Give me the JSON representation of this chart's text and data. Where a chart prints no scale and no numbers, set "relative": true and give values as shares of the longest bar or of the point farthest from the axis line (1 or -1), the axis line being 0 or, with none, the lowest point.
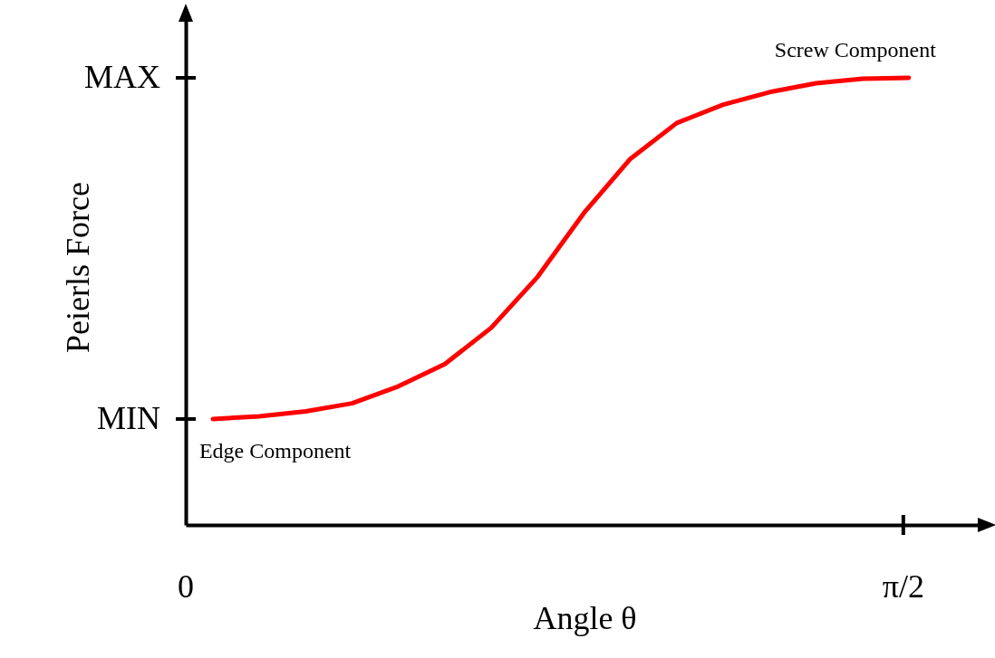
{
  "chart_data": {
    "type": "line",
    "xlabel": "Angle θ",
    "ylabel": "Peierls Force",
    "categories": [
      null,
      null,
      null,
      null,
      null,
      null,
      null,
      null,
      null,
      null,
      null,
      null,
      null,
      null,
      null,
      null
    ],
    "relative": true,
    "series": [
      {
        "color": "#ff0000",
        "values": [
          0.237,
          0.243,
          0.254,
          0.272,
          0.31,
          0.36,
          0.441,
          0.555,
          0.698,
          0.819,
          0.899,
          0.94,
          0.968,
          0.988,
          0.998,
          1
        ]
      }
    ],
    "annotations": [
      "MIN",
      "MAX",
      "Edge Component",
      "Screw Component",
      "0",
      "π/2"
    ]
  }
}
